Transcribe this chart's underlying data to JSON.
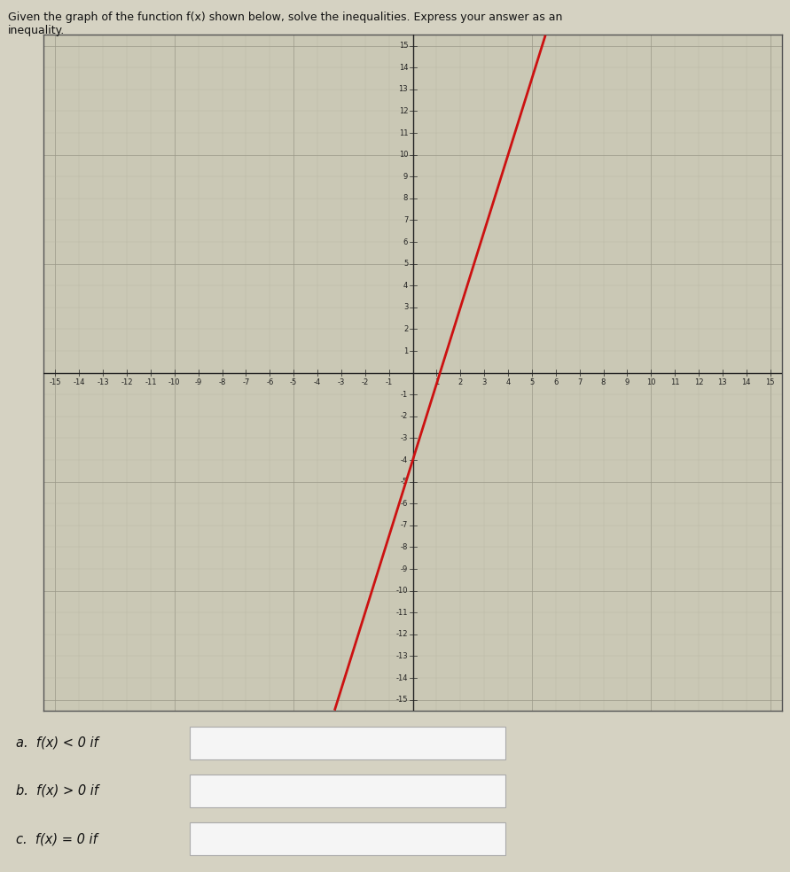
{
  "title_line1": "Given the graph of the function f(x) shown below, solve the inequalities. Express your answer as an",
  "title_line2": "inequality.",
  "xlim": [
    -15.5,
    15.5
  ],
  "ylim": [
    -15.5,
    15.5
  ],
  "tick_values": [
    -15,
    -14,
    -13,
    -12,
    -11,
    -10,
    -9,
    -8,
    -7,
    -6,
    -5,
    -4,
    -3,
    -2,
    -1,
    1,
    2,
    3,
    4,
    5,
    6,
    7,
    8,
    9,
    10,
    11,
    12,
    13,
    14,
    15
  ],
  "line_color": "#cc1111",
  "line_width": 2.0,
  "slope": 3.5,
  "y_intercept": -4.0,
  "bg_color": "#cac8b5",
  "grid_color_minor": "#b8b5a3",
  "grid_color_major": "#9a9888",
  "axis_color": "#222222",
  "spine_color": "#555555",
  "label_a": "a.  f(x) < 0 if",
  "label_b": "b.  f(x) > 0 if",
  "label_c": "c.  f(x) = 0 if",
  "box_fill": "#f5f5f5",
  "box_border": "#aaaaaa",
  "tick_fontsize": 6.0,
  "title_fontsize": 9.0,
  "label_fontsize": 10.5,
  "fig_bg": "#d5d2c2"
}
